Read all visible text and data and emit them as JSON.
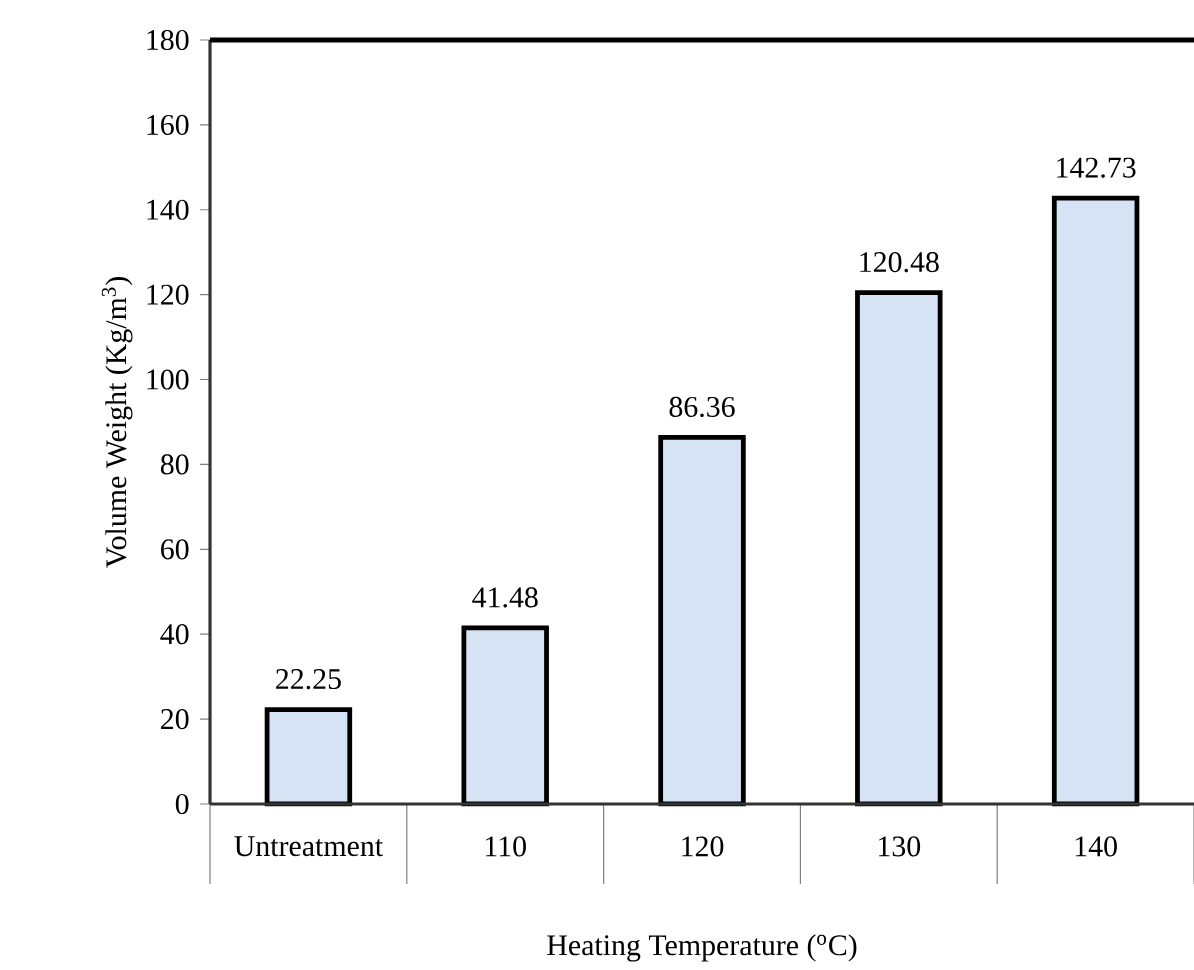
{
  "chart_data": {
    "type": "bar",
    "xlabel": "Heating Temperature ($^{o}$C)",
    "ylabel": "Volume Weight (Kg/m$^{3}$)",
    "categories": [
      "Untreatment",
      "110",
      "120",
      "130",
      "140"
    ],
    "values": [
      22.25,
      41.48,
      86.36,
      120.48,
      142.73
    ],
    "color": "#d6e3f5",
    "ylim": [
      0,
      180
    ],
    "yticks": [
      0,
      20,
      40,
      60,
      80,
      100,
      120,
      140,
      160,
      180
    ],
    "data_labels": true,
    "grid": false
  }
}
